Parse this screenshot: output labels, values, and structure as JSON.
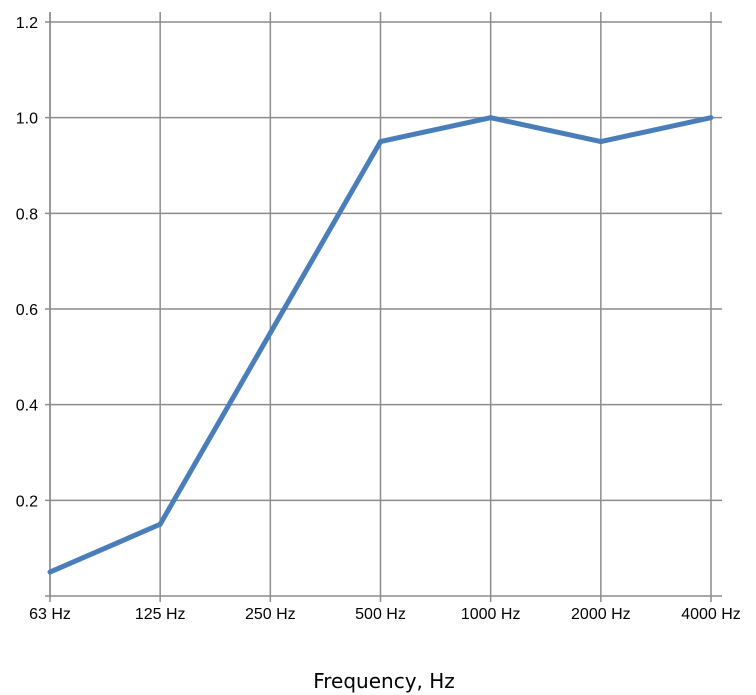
{
  "chart_data": {
    "type": "line",
    "title": "",
    "xlabel": "Frequency, Hz",
    "ylabel": "",
    "categories": [
      "63 Hz",
      "125 Hz",
      "250 Hz",
      "500 Hz",
      "1000 Hz",
      "2000 Hz",
      "4000 Hz"
    ],
    "series": [
      {
        "values": [
          0.05,
          0.15,
          0.55,
          0.95,
          1.0,
          0.95,
          1.0
        ],
        "color": "#4a7ebb"
      }
    ],
    "ylim": [
      0,
      1.2
    ],
    "yticks": [
      0.2,
      0.4,
      0.6,
      0.8,
      1.0,
      1.2
    ],
    "ytick_labels": [
      "0.2",
      "0.4",
      "0.6",
      "0.8",
      "1.0",
      "1.2"
    ],
    "grid": true,
    "grid_color": "#8c8c8c",
    "legend": "none"
  }
}
